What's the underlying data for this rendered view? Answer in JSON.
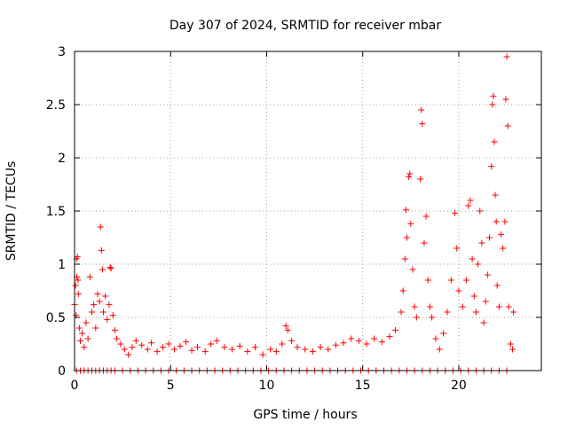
{
  "chart_data": {
    "type": "scatter",
    "title": "Day 307 of 2024, SRMTID for receiver mbar",
    "xlabel": "GPS time / hours",
    "ylabel": "SRMTID / TECUs",
    "xlim": [
      0,
      24.3
    ],
    "ylim": [
      0,
      3
    ],
    "x_ticks": [
      0,
      5,
      10,
      15,
      20
    ],
    "x_tick_labels": [
      "0",
      "5",
      "10",
      "15",
      "20"
    ],
    "y_ticks": [
      0,
      0.5,
      1,
      1.5,
      2,
      2.5,
      3
    ],
    "y_tick_labels": [
      "0",
      "0.5",
      "1",
      "1.5",
      "2",
      "2.5",
      "3"
    ],
    "grid": true,
    "marker": "+",
    "series": [
      {
        "name": "SRMTID",
        "color": "#ff0000",
        "points": [
          [
            0.0,
            0.62
          ],
          [
            0.05,
            0.8
          ],
          [
            0.08,
            0.52
          ],
          [
            0.1,
            1.05
          ],
          [
            0.12,
            0.88
          ],
          [
            0.15,
            1.07
          ],
          [
            0.18,
            0.85
          ],
          [
            0.2,
            0.72
          ],
          [
            0.25,
            0.4
          ],
          [
            0.3,
            0.28
          ],
          [
            0.4,
            0.35
          ],
          [
            0.5,
            0.22
          ],
          [
            0.6,
            0.45
          ],
          [
            0.7,
            0.3
          ],
          [
            0.8,
            0.88
          ],
          [
            0.9,
            0.55
          ],
          [
            1.0,
            0.62
          ],
          [
            1.1,
            0.4
          ],
          [
            1.2,
            0.72
          ],
          [
            1.3,
            0.65
          ],
          [
            1.35,
            1.35
          ],
          [
            1.4,
            1.13
          ],
          [
            1.45,
            0.95
          ],
          [
            1.5,
            0.55
          ],
          [
            1.6,
            0.7
          ],
          [
            1.7,
            0.48
          ],
          [
            1.8,
            0.62
          ],
          [
            1.85,
            0.97
          ],
          [
            1.9,
            0.96
          ],
          [
            2.0,
            0.52
          ],
          [
            2.1,
            0.38
          ],
          [
            2.2,
            0.3
          ],
          [
            2.4,
            0.25
          ],
          [
            2.6,
            0.2
          ],
          [
            2.8,
            0.15
          ],
          [
            3.0,
            0.22
          ],
          [
            3.2,
            0.28
          ],
          [
            3.5,
            0.24
          ],
          [
            3.8,
            0.2
          ],
          [
            4.0,
            0.26
          ],
          [
            4.3,
            0.18
          ],
          [
            4.6,
            0.22
          ],
          [
            4.9,
            0.25
          ],
          [
            5.2,
            0.2
          ],
          [
            5.5,
            0.23
          ],
          [
            5.8,
            0.27
          ],
          [
            6.1,
            0.19
          ],
          [
            6.4,
            0.22
          ],
          [
            6.8,
            0.18
          ],
          [
            7.1,
            0.25
          ],
          [
            7.4,
            0.28
          ],
          [
            7.8,
            0.22
          ],
          [
            8.2,
            0.2
          ],
          [
            8.6,
            0.23
          ],
          [
            9.0,
            0.18
          ],
          [
            9.4,
            0.22
          ],
          [
            9.8,
            0.15
          ],
          [
            10.2,
            0.2
          ],
          [
            10.5,
            0.18
          ],
          [
            10.8,
            0.25
          ],
          [
            11.0,
            0.42
          ],
          [
            11.1,
            0.38
          ],
          [
            11.3,
            0.28
          ],
          [
            11.6,
            0.22
          ],
          [
            12.0,
            0.2
          ],
          [
            12.4,
            0.18
          ],
          [
            12.8,
            0.22
          ],
          [
            13.2,
            0.2
          ],
          [
            13.6,
            0.24
          ],
          [
            14.0,
            0.26
          ],
          [
            14.4,
            0.3
          ],
          [
            14.8,
            0.28
          ],
          [
            15.2,
            0.25
          ],
          [
            15.6,
            0.3
          ],
          [
            16.0,
            0.27
          ],
          [
            16.4,
            0.32
          ],
          [
            16.7,
            0.38
          ],
          [
            17.0,
            0.55
          ],
          [
            17.1,
            0.75
          ],
          [
            17.2,
            1.05
          ],
          [
            17.25,
            1.51
          ],
          [
            17.3,
            1.25
          ],
          [
            17.4,
            1.82
          ],
          [
            17.45,
            1.85
          ],
          [
            17.5,
            1.38
          ],
          [
            17.6,
            0.95
          ],
          [
            17.7,
            0.6
          ],
          [
            17.8,
            0.5
          ],
          [
            18.0,
            1.8
          ],
          [
            18.05,
            2.45
          ],
          [
            18.1,
            2.32
          ],
          [
            18.2,
            1.2
          ],
          [
            18.3,
            1.45
          ],
          [
            18.4,
            0.85
          ],
          [
            18.5,
            0.6
          ],
          [
            18.6,
            0.5
          ],
          [
            18.8,
            0.3
          ],
          [
            19.0,
            0.2
          ],
          [
            19.2,
            0.35
          ],
          [
            19.4,
            0.55
          ],
          [
            19.6,
            0.85
          ],
          [
            19.8,
            1.48
          ],
          [
            19.9,
            1.15
          ],
          [
            20.0,
            0.75
          ],
          [
            20.2,
            0.6
          ],
          [
            20.4,
            0.85
          ],
          [
            20.5,
            1.55
          ],
          [
            20.6,
            1.6
          ],
          [
            20.7,
            1.05
          ],
          [
            20.8,
            0.7
          ],
          [
            20.9,
            0.55
          ],
          [
            21.0,
            1.0
          ],
          [
            21.1,
            1.5
          ],
          [
            21.2,
            1.2
          ],
          [
            21.3,
            0.45
          ],
          [
            21.4,
            0.65
          ],
          [
            21.5,
            0.9
          ],
          [
            21.6,
            1.25
          ],
          [
            21.7,
            1.92
          ],
          [
            21.75,
            2.5
          ],
          [
            21.8,
            2.58
          ],
          [
            21.85,
            2.15
          ],
          [
            21.9,
            1.65
          ],
          [
            21.95,
            1.4
          ],
          [
            22.0,
            0.8
          ],
          [
            22.1,
            0.6
          ],
          [
            22.2,
            1.28
          ],
          [
            22.3,
            1.15
          ],
          [
            22.4,
            1.4
          ],
          [
            22.45,
            2.55
          ],
          [
            22.5,
            2.95
          ],
          [
            22.55,
            2.3
          ],
          [
            22.6,
            0.6
          ],
          [
            22.7,
            0.25
          ],
          [
            22.8,
            0.2
          ],
          [
            22.85,
            0.55
          ]
        ]
      }
    ],
    "zero_points_x": [
      0.1,
      0.3,
      0.5,
      0.7,
      0.9,
      1.1,
      1.3,
      1.5,
      1.7,
      1.9,
      2.1,
      2.5,
      2.9,
      3.3,
      3.7,
      4.1,
      4.5,
      4.9,
      5.3,
      5.7,
      6.1,
      6.5,
      6.9,
      7.3,
      7.7,
      8.1,
      8.5,
      8.9,
      9.3,
      9.7,
      10.1,
      10.5,
      10.9,
      11.3,
      11.7,
      12.1,
      12.5,
      12.9,
      13.3,
      13.7,
      14.1,
      14.5,
      14.9,
      15.3,
      15.7,
      16.1,
      16.5,
      16.9,
      17.3,
      17.7,
      18.1,
      18.5,
      18.9,
      19.3,
      19.7,
      20.1,
      20.5,
      20.9,
      21.3,
      21.7,
      22.1,
      22.5
    ]
  }
}
